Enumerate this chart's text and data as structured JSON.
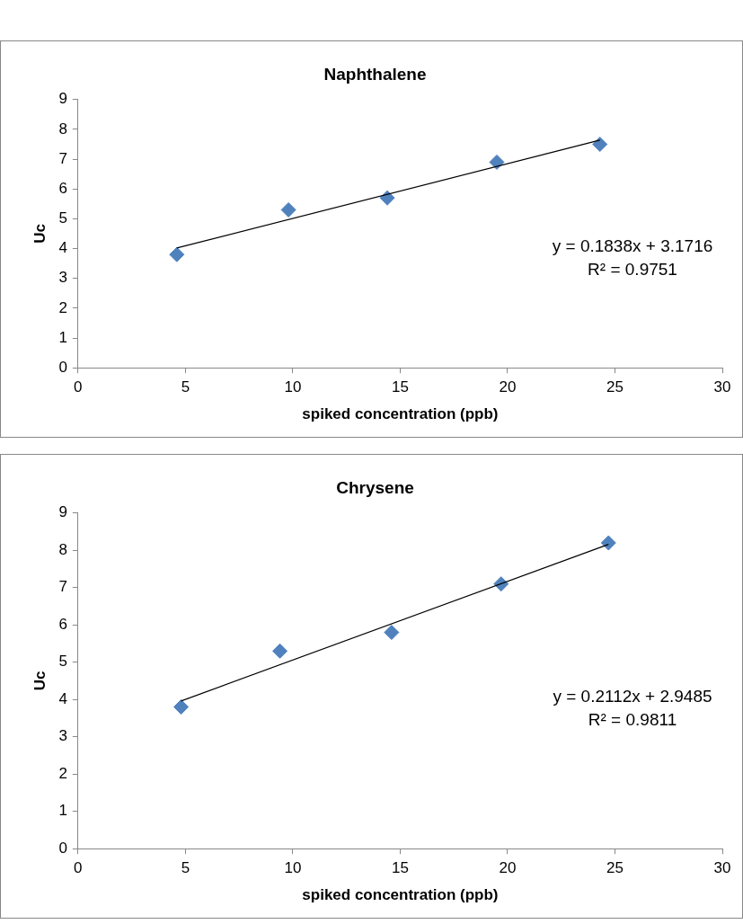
{
  "chart_data": [
    {
      "type": "scatter",
      "title": "Naphthalene",
      "xlabel": "spiked concentration (ppb)",
      "ylabel": "Uc",
      "xlim": [
        0,
        30
      ],
      "xticks": [
        0,
        5,
        10,
        15,
        20,
        25,
        30
      ],
      "ylim": [
        0,
        9
      ],
      "yticks": [
        0,
        1,
        2,
        3,
        4,
        5,
        6,
        7,
        8,
        9
      ],
      "grid": false,
      "legend": false,
      "series": [
        {
          "color": "#4f81bd",
          "marker": "diamond",
          "x": [
            4.6,
            9.8,
            14.4,
            19.5,
            24.3
          ],
          "values": [
            3.8,
            5.3,
            5.7,
            6.9,
            7.5
          ]
        },
        {
          "type": "line",
          "marker": "none",
          "color": "#000000",
          "x": [
            4.6,
            24.3
          ],
          "values": [
            4.02,
            7.64
          ]
        }
      ],
      "annotations": [
        "y = 0.1838x + 3.1716",
        "R² = 0.9751"
      ]
    },
    {
      "type": "scatter",
      "title": "Chrysene",
      "xlabel": "spiked concentration (ppb)",
      "ylabel": "Uc",
      "xlim": [
        0,
        30
      ],
      "xticks": [
        0,
        5,
        10,
        15,
        20,
        25,
        30
      ],
      "ylim": [
        0,
        9
      ],
      "yticks": [
        0,
        1,
        2,
        3,
        4,
        5,
        6,
        7,
        8,
        9
      ],
      "grid": false,
      "legend": false,
      "series": [
        {
          "color": "#4f81bd",
          "marker": "diamond",
          "x": [
            4.8,
            9.4,
            14.6,
            19.7,
            24.7
          ],
          "values": [
            3.8,
            5.3,
            5.8,
            7.1,
            8.2
          ]
        },
        {
          "type": "line",
          "marker": "none",
          "color": "#000000",
          "x": [
            4.8,
            24.7
          ],
          "values": [
            3.96,
            8.16
          ]
        }
      ],
      "annotations": [
        "y = 0.2112x + 2.9485",
        "R² = 0.9811"
      ]
    }
  ]
}
